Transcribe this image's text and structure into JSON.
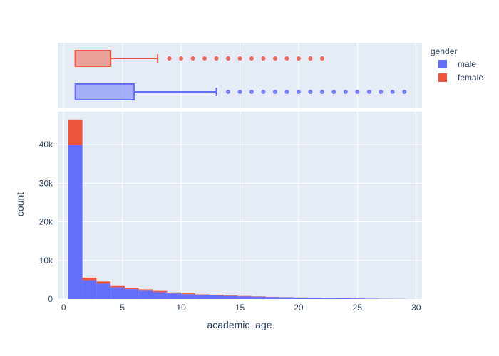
{
  "chart_data": {
    "type": "histogram with marginal box plot",
    "xlabel": "academic_age",
    "ylabel": "count",
    "xlim": [
      -0.5,
      30.5
    ],
    "ylim": [
      0,
      48500
    ],
    "x_ticks": [
      0,
      5,
      10,
      15,
      20,
      25,
      30
    ],
    "y_ticks": [
      0,
      10000,
      20000,
      30000,
      40000
    ],
    "y_tick_labels": [
      "0",
      "10k",
      "20k",
      "30k",
      "40k"
    ],
    "barmode": "stacked",
    "bin_width": 1.2,
    "bin_start": 0.4,
    "legend": {
      "title": "gender",
      "position": "right"
    },
    "series": [
      {
        "name": "male",
        "color": "#636efa",
        "counts": [
          39900,
          4900,
          4000,
          3050,
          2550,
          2150,
          1800,
          1450,
          1250,
          1050,
          950,
          800,
          700,
          620,
          520,
          450,
          380,
          320,
          260,
          200,
          150,
          100,
          60,
          40,
          20
        ]
      },
      {
        "name": "female",
        "color": "#ef553b",
        "counts": [
          6600,
          650,
          550,
          500,
          400,
          350,
          300,
          250,
          200,
          150,
          130,
          110,
          90,
          70,
          50,
          40,
          30,
          20,
          15,
          10,
          5,
          0,
          0,
          0,
          0
        ]
      }
    ],
    "box": {
      "female": {
        "min": 1,
        "q1": 1,
        "median": 1,
        "q3": 4,
        "upper_fence": 8,
        "outliers": [
          9,
          10,
          11,
          12,
          13,
          14,
          15,
          16,
          17,
          18,
          19,
          20,
          21,
          22
        ]
      },
      "male": {
        "min": 1,
        "q1": 1,
        "median": 1,
        "q3": 6,
        "upper_fence": 13,
        "outliers": [
          14,
          15,
          16,
          17,
          18,
          19,
          20,
          21,
          22,
          23,
          24,
          25,
          26,
          27,
          28,
          29
        ]
      }
    }
  }
}
